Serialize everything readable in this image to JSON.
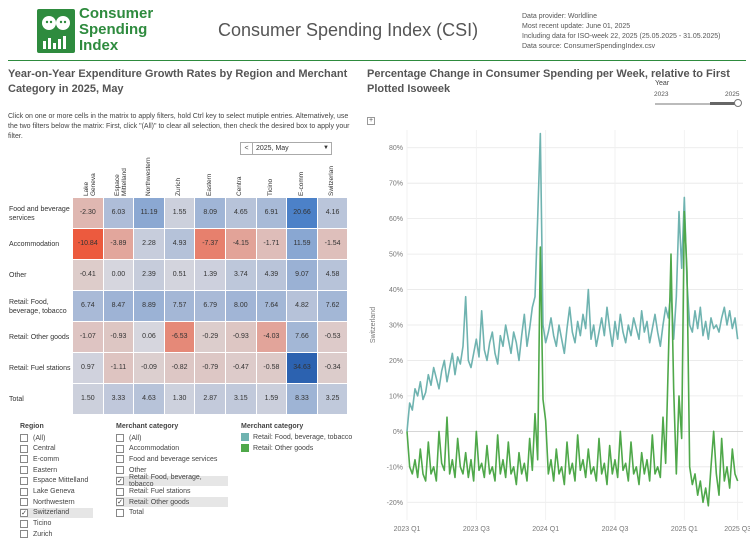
{
  "header": {
    "logo_lines": [
      "Consumer",
      "Spending",
      "Index"
    ],
    "title": "Consumer Spending Index (CSI)",
    "meta": [
      "Data provider: Worldline",
      "Most recent update: June 01, 2025",
      "Including data for ISO-week 22, 2025 (25.05.2025 - 31.05.2025)",
      "Data source: ConsumerSpendingIndex.csv"
    ]
  },
  "left": {
    "title": "Year-on-Year Expenditure Growth Rates by Region and Merchant Category in 2025, May",
    "instructions": "Click on one or more cells in the matrix to apply filters, hold Ctrl key to select mutiple entries. Alternatively, use the two filters below the matrix: First, click \"(All)\" to clear all selection, then check the desired box to apply your filter.",
    "period": "2025, May",
    "period_prev": "<",
    "period_dd": "▼"
  },
  "matrix": {
    "columns": [
      "Lake Geneva",
      "Espace Mittelland",
      "Northwestern",
      "Zurich",
      "Eastern",
      "Centra",
      "Ticino",
      "E-comm",
      "Switzerlan"
    ],
    "rows": [
      {
        "label": "Food and beverage services",
        "values": [
          "-2.30",
          "6.03",
          "11.19",
          "1.55",
          "8.09",
          "4.65",
          "6.91",
          "20.66",
          "4.16"
        ]
      },
      {
        "label": "Accommodation",
        "values": [
          "-10.84",
          "-3.89",
          "2.28",
          "4.93",
          "-7.37",
          "-4.15",
          "-1.71",
          "11.59",
          "-1.54"
        ]
      },
      {
        "label": "Other",
        "values": [
          "-0.41",
          "0.00",
          "2.39",
          "0.51",
          "1.39",
          "3.74",
          "4.39",
          "9.07",
          "4.58"
        ]
      },
      {
        "label": "Retail: Food, beverage, tobacco",
        "values": [
          "6.74",
          "8.47",
          "8.89",
          "7.57",
          "6.79",
          "8.00",
          "7.64",
          "4.82",
          "7.62"
        ]
      },
      {
        "label": "Retail: Other goods",
        "values": [
          "-1.07",
          "-0.93",
          "0.06",
          "-6.53",
          "-0.29",
          "-0.93",
          "-4.03",
          "7.66",
          "-0.53"
        ]
      },
      {
        "label": "Retail: Fuel stations",
        "values": [
          "0.97",
          "-1.11",
          "-0.09",
          "-0.82",
          "-0.79",
          "-0.47",
          "-0.58",
          "34.63",
          "-0.34"
        ]
      },
      {
        "label": "Total",
        "values": [
          "1.50",
          "3.33",
          "4.63",
          "1.30",
          "2.87",
          "3.15",
          "1.59",
          "8.33",
          "3.25"
        ]
      }
    ]
  },
  "filters": {
    "region_title": "Region",
    "region_items": [
      {
        "label": "(All)",
        "checked": false
      },
      {
        "label": "Central",
        "checked": false
      },
      {
        "label": "E-comm",
        "checked": false
      },
      {
        "label": "Eastern",
        "checked": false
      },
      {
        "label": "Espace Mittelland",
        "checked": false
      },
      {
        "label": "Lake Geneva",
        "checked": false
      },
      {
        "label": "Northwestern",
        "checked": false
      },
      {
        "label": "Switzerland",
        "checked": true
      },
      {
        "label": "Ticino",
        "checked": false
      },
      {
        "label": "Zurich",
        "checked": false
      }
    ],
    "merchant_title": "Merchant category",
    "merchant_items": [
      {
        "label": "(All)",
        "checked": false
      },
      {
        "label": "Accommodation",
        "checked": false
      },
      {
        "label": "Food and beverage services",
        "checked": false
      },
      {
        "label": "Other",
        "checked": false
      },
      {
        "label": "Retail: Food, beverage, tobacco",
        "checked": true
      },
      {
        "label": "Retail: Fuel stations",
        "checked": false
      },
      {
        "label": "Retail: Other goods",
        "checked": true
      },
      {
        "label": "Total",
        "checked": false
      }
    ],
    "legend_title": "Merchant category",
    "legend_items": [
      {
        "label": "Retail: Food, beverage, tobacco",
        "color": "#6fb3b0"
      },
      {
        "label": "Retail: Other goods",
        "color": "#4fa84a"
      }
    ]
  },
  "right": {
    "title": "Percentage Change in Consumer Spending per Week, relative to First Plotted Isoweek",
    "year_label": "Year",
    "year_min": "2023",
    "year_max": "2025",
    "plus": "+"
  },
  "chart_data": {
    "type": "line",
    "title": "Percentage Change in Consumer Spending per Week, relative to First Plotted Isoweek",
    "ylabel": "Switzerland",
    "xlabel": "",
    "ylim": [
      -25,
      85
    ],
    "yticks": [
      -20,
      -10,
      0,
      10,
      20,
      30,
      40,
      50,
      60,
      70,
      80
    ],
    "ytick_labels": [
      "-20%",
      "-10%",
      "0%",
      "10%",
      "20%",
      "30%",
      "40%",
      "50%",
      "60%",
      "70%",
      "80%"
    ],
    "xlim": [
      0,
      126
    ],
    "xticks": [
      0,
      26,
      52,
      78,
      104,
      124
    ],
    "xtick_labels": [
      "2023 Q1",
      "2023 Q3",
      "2024 Q1",
      "2024 Q3",
      "2025 Q1",
      "2025 Q3"
    ],
    "series": [
      {
        "name": "Retail: Food, beverage, tobacco",
        "color": "#6fb3b0",
        "values": [
          0,
          8,
          6,
          12,
          10,
          14,
          9,
          11,
          16,
          13,
          18,
          15,
          12,
          17,
          20,
          14,
          18,
          22,
          16,
          21,
          19,
          24,
          38,
          20,
          18,
          22,
          26,
          21,
          34,
          23,
          20,
          25,
          28,
          22,
          19,
          27,
          24,
          30,
          26,
          22,
          28,
          25,
          20,
          27,
          33,
          24,
          29,
          35,
          38,
          60,
          84,
          30,
          25,
          28,
          32,
          27,
          24,
          30,
          26,
          22,
          29,
          35,
          28,
          25,
          31,
          27,
          33,
          29,
          40,
          26,
          30,
          24,
          28,
          32,
          27,
          35,
          29,
          24,
          31,
          26,
          33,
          28,
          25,
          30,
          27,
          32,
          29,
          26,
          34,
          28,
          31,
          25,
          29,
          33,
          28,
          24,
          30,
          35,
          32,
          40,
          26,
          38,
          62,
          46,
          66,
          42,
          30,
          28,
          34,
          29,
          35,
          27,
          31,
          26,
          32,
          29,
          30,
          28,
          32,
          35,
          30,
          34,
          29,
          32,
          26
        ]
      },
      {
        "name": "Retail: Other goods",
        "color": "#4fa84a",
        "values": [
          0,
          -10,
          -12,
          -8,
          -13,
          -5,
          -12,
          -14,
          -3,
          -12,
          -10,
          -14,
          0,
          -9,
          -11,
          4,
          -12,
          -8,
          -13,
          -2,
          -10,
          -12,
          -6,
          -13,
          -8,
          -14,
          0,
          -11,
          -9,
          -13,
          -4,
          -12,
          -10,
          -14,
          -1,
          -12,
          -8,
          -13,
          -3,
          -12,
          -10,
          -15,
          -6,
          -12,
          -9,
          -14,
          -2,
          -11,
          5,
          -8,
          52,
          9,
          3,
          -12,
          -8,
          -14,
          -5,
          -12,
          -10,
          -15,
          -3,
          -12,
          -9,
          -14,
          -1,
          -11,
          -8,
          -13,
          -5,
          -12,
          -10,
          -14,
          -2,
          -12,
          -9,
          -15,
          -4,
          -12,
          -8,
          -13,
          0,
          -11,
          -9,
          -14,
          -3,
          -12,
          -10,
          -15,
          -6,
          -12,
          -8,
          -14,
          -1,
          -12,
          -10,
          -13,
          4,
          -9,
          20,
          50,
          12,
          -12,
          10,
          -2,
          62,
          45,
          -10,
          -15,
          -12,
          -18,
          -14,
          -20,
          -16,
          -21,
          -10,
          0,
          -12,
          -18,
          -2,
          -14,
          -10,
          -16,
          -5,
          -12,
          -14
        ]
      }
    ]
  }
}
